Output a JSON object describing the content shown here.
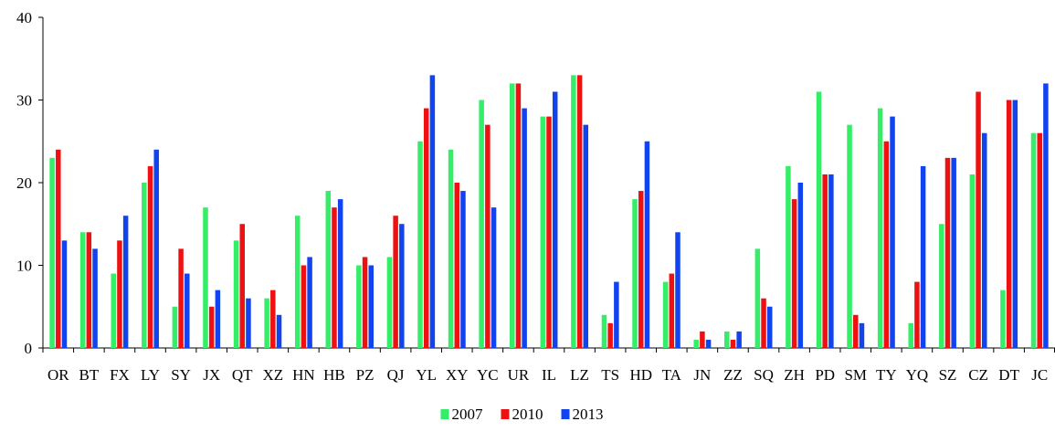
{
  "chart_data": {
    "type": "bar",
    "title": "",
    "xlabel": "",
    "ylabel": "",
    "ylim": [
      0,
      40
    ],
    "yticks": [
      0,
      10,
      20,
      30,
      40
    ],
    "grid": false,
    "legend_position": "bottom-center",
    "categories": [
      "OR",
      "BT",
      "FX",
      "LY",
      "SY",
      "JX",
      "QT",
      "XZ",
      "HN",
      "HB",
      "PZ",
      "QJ",
      "YL",
      "XY",
      "YC",
      "UR",
      "IL",
      "LZ",
      "TS",
      "HD",
      "TA",
      "JN",
      "ZZ",
      "SQ",
      "ZH",
      "PD",
      "SM",
      "TY",
      "YQ",
      "SZ",
      "CZ",
      "DT",
      "JC"
    ],
    "series": [
      {
        "name": "2007",
        "color": "#33ee66",
        "values": [
          23,
          14,
          9,
          20,
          5,
          17,
          13,
          6,
          16,
          19,
          10,
          11,
          25,
          24,
          30,
          32,
          28,
          33,
          4,
          18,
          8,
          1,
          2,
          12,
          22,
          31,
          27,
          29,
          3,
          15,
          21,
          7,
          26
        ]
      },
      {
        "name": "2010",
        "color": "#ee1111",
        "values": [
          24,
          14,
          13,
          22,
          12,
          5,
          15,
          7,
          10,
          17,
          11,
          16,
          29,
          20,
          27,
          32,
          28,
          33,
          3,
          19,
          9,
          2,
          1,
          6,
          18,
          21,
          4,
          25,
          8,
          23,
          31,
          30,
          26
        ]
      },
      {
        "name": "2013",
        "color": "#1144ee",
        "values": [
          13,
          12,
          16,
          24,
          9,
          7,
          6,
          4,
          11,
          18,
          10,
          15,
          33,
          19,
          17,
          29,
          31,
          27,
          8,
          25,
          14,
          1,
          2,
          5,
          20,
          21,
          3,
          28,
          22,
          23,
          26,
          30,
          32
        ]
      }
    ]
  }
}
